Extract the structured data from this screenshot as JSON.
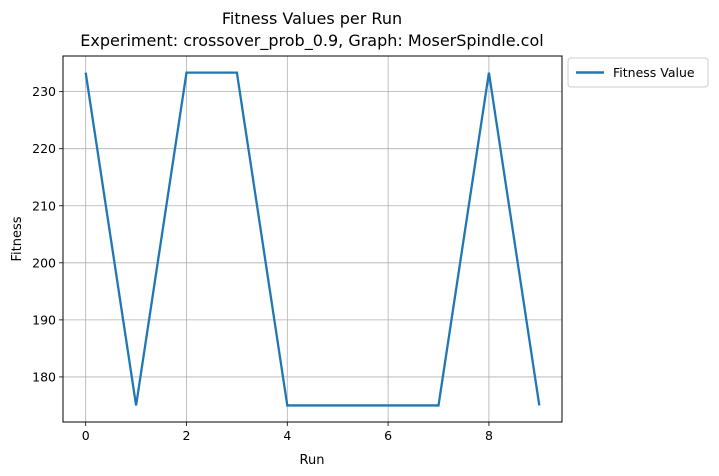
{
  "chart_data": {
    "type": "line",
    "title": "Fitness Values per Run",
    "subtitle": "Experiment: crossover_prob_0.9, Graph: MoserSpindle.col",
    "xlabel": "Run",
    "ylabel": "Fitness",
    "x": [
      0,
      1,
      2,
      3,
      4,
      5,
      6,
      7,
      8,
      9
    ],
    "series": [
      {
        "name": "Fitness Value",
        "color": "#1f77b4",
        "values": [
          233.33,
          175.0,
          233.33,
          233.33,
          175.0,
          175.0,
          175.0,
          175.0,
          233.33,
          175.0
        ]
      }
    ],
    "xlim": [
      -0.45,
      9.45
    ],
    "ylim": [
      172.1,
      236.25
    ],
    "xticks": [
      0,
      2,
      4,
      6,
      8
    ],
    "xtick_labels": [
      "0",
      "2",
      "4",
      "6",
      "8"
    ],
    "yticks": [
      180,
      190,
      200,
      210,
      220,
      230
    ],
    "ytick_labels": [
      "180",
      "190",
      "200",
      "210",
      "220",
      "230"
    ],
    "grid": true,
    "legend_placement": "outside-top-right"
  }
}
